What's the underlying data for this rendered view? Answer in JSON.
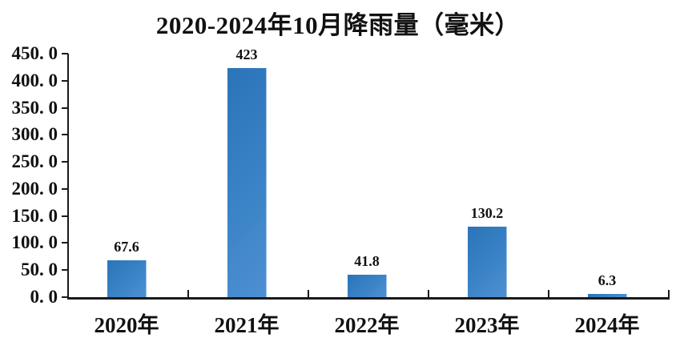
{
  "chart_data": {
    "type": "bar",
    "title": "2020-2024年10月降雨量（毫米）",
    "categories": [
      "2020年",
      "2021年",
      "2022年",
      "2023年",
      "2024年"
    ],
    "values": [
      67.6,
      423,
      41.8,
      130.2,
      6.3
    ],
    "value_labels": [
      "67.6",
      "423",
      "41.8",
      "130.2",
      "6.3"
    ],
    "xlabel": "",
    "ylabel": "",
    "ylim": [
      0,
      450
    ],
    "y_tick_step": 50,
    "y_tick_labels_top_to_bottom": [
      "450. 0",
      "400. 0",
      "350. 0",
      "300. 0",
      "250. 0",
      "200. 0",
      "150. 0",
      "100. 0",
      "50. 0",
      "0. 0"
    ],
    "grid": false,
    "legend_position": "none",
    "colors": {
      "bar_gradient_start": "#2B74B9",
      "bar_gradient_mid": "#3A83C6",
      "bar_gradient_end": "#4E90D2",
      "bar_edge_highlight": "#9DC3E6",
      "axis": "#1a1a1a",
      "text": "#111111",
      "background": "#ffffff"
    }
  }
}
